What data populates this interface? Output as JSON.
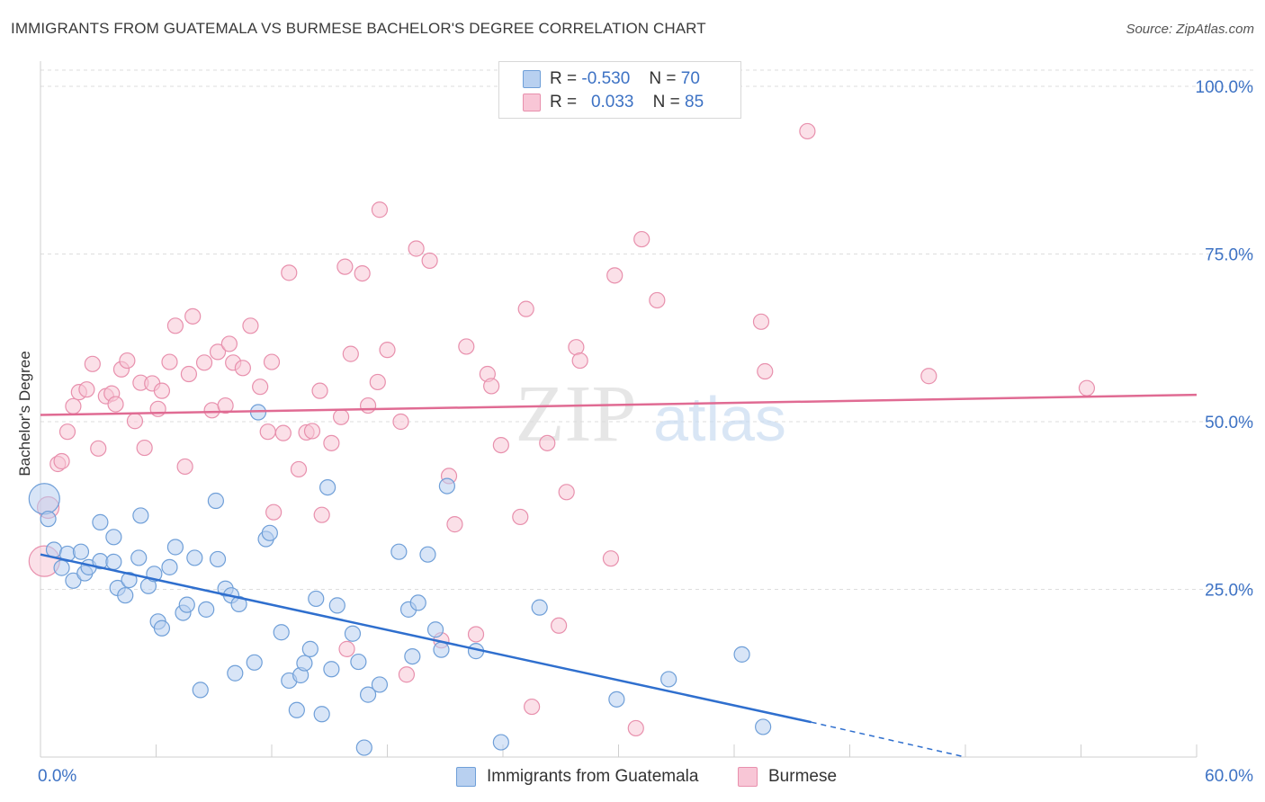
{
  "header": {
    "title": "IMMIGRANTS FROM GUATEMALA VS BURMESE BACHELOR'S DEGREE CORRELATION CHART",
    "source": "Source: ZipAtlas.com"
  },
  "colors": {
    "blue_fill": "#b8d0f0",
    "blue_stroke": "#6f9fd8",
    "blue_line": "#2f6fce",
    "pink_fill": "#f8c6d6",
    "pink_stroke": "#e890ad",
    "pink_line": "#e06b93",
    "value_text": "#3d72c4"
  },
  "stats": [
    {
      "r_label": "R =",
      "r_value": "-0.530",
      "n_label": "N =",
      "n_value": "70"
    },
    {
      "r_label": "R =",
      "r_value": "0.033",
      "n_label": "N =",
      "n_value": "85"
    }
  ],
  "legend": {
    "series1": "Immigrants from Guatemala",
    "series2": "Burmese"
  },
  "watermark": {
    "zip": "ZIP",
    "atlas": "atlas"
  },
  "chart_data": {
    "type": "scatter",
    "title": "IMMIGRANTS FROM GUATEMALA VS BURMESE BACHELOR'S DEGREE CORRELATION CHART",
    "xlabel": "",
    "ylabel": "Bachelor's Degree",
    "xlim": [
      0,
      60
    ],
    "ylim": [
      0,
      100
    ],
    "x_tick_labels": [
      "0.0%",
      "60.0%"
    ],
    "y_tick_labels": [
      "25.0%",
      "50.0%",
      "75.0%",
      "100.0%"
    ],
    "y_ticks": [
      25,
      50,
      75,
      100
    ],
    "series": [
      {
        "name": "Immigrants from Guatemala",
        "r": -0.53,
        "n": 70,
        "trend": {
          "x0": 0,
          "y0": 30.2,
          "x1": 40,
          "y1": 5.2,
          "dashed_to_x": 48,
          "dashed_to_y": 0
        },
        "points": [
          [
            0.2,
            38.5
          ],
          [
            0.4,
            35.5
          ],
          [
            0.7,
            30.9
          ],
          [
            1.1,
            28.2
          ],
          [
            1.4,
            30.3
          ],
          [
            1.7,
            26.3
          ],
          [
            2.1,
            30.6
          ],
          [
            2.3,
            27.4
          ],
          [
            2.5,
            28.3
          ],
          [
            3.1,
            29.2
          ],
          [
            3.1,
            35.0
          ],
          [
            3.8,
            29.1
          ],
          [
            3.8,
            32.8
          ],
          [
            4.0,
            25.2
          ],
          [
            4.4,
            24.1
          ],
          [
            4.6,
            26.4
          ],
          [
            5.1,
            29.7
          ],
          [
            5.2,
            36.0
          ],
          [
            5.6,
            25.5
          ],
          [
            5.9,
            27.3
          ],
          [
            6.1,
            20.2
          ],
          [
            6.3,
            19.2
          ],
          [
            6.7,
            28.3
          ],
          [
            7.0,
            31.3
          ],
          [
            7.4,
            21.5
          ],
          [
            7.6,
            22.7
          ],
          [
            8.0,
            29.7
          ],
          [
            8.3,
            10.0
          ],
          [
            8.6,
            22.0
          ],
          [
            9.1,
            38.2
          ],
          [
            9.2,
            29.5
          ],
          [
            9.6,
            25.1
          ],
          [
            9.9,
            24.1
          ],
          [
            10.1,
            12.5
          ],
          [
            10.3,
            22.8
          ],
          [
            11.1,
            14.1
          ],
          [
            11.3,
            51.4
          ],
          [
            11.7,
            32.5
          ],
          [
            11.9,
            33.4
          ],
          [
            12.5,
            18.6
          ],
          [
            12.9,
            11.4
          ],
          [
            13.3,
            7.0
          ],
          [
            13.5,
            12.2
          ],
          [
            13.7,
            14.0
          ],
          [
            14.0,
            16.1
          ],
          [
            14.3,
            23.6
          ],
          [
            14.6,
            6.4
          ],
          [
            14.9,
            40.2
          ],
          [
            15.1,
            13.1
          ],
          [
            15.4,
            22.6
          ],
          [
            16.2,
            18.4
          ],
          [
            16.5,
            14.2
          ],
          [
            16.8,
            1.4
          ],
          [
            17.0,
            9.3
          ],
          [
            17.6,
            10.8
          ],
          [
            18.6,
            30.6
          ],
          [
            19.1,
            22.0
          ],
          [
            19.3,
            15.0
          ],
          [
            19.6,
            23.0
          ],
          [
            20.1,
            30.2
          ],
          [
            20.5,
            19.0
          ],
          [
            20.8,
            16.0
          ],
          [
            21.1,
            40.4
          ],
          [
            22.6,
            15.8
          ],
          [
            23.9,
            2.2
          ],
          [
            25.9,
            22.3
          ],
          [
            29.9,
            8.6
          ],
          [
            32.6,
            11.6
          ],
          [
            36.4,
            15.3
          ],
          [
            37.5,
            4.5
          ]
        ]
      },
      {
        "name": "Burmese",
        "r": 0.033,
        "n": 85,
        "trend": {
          "x0": 0,
          "y0": 51.0,
          "x1": 60,
          "y1": 54.0
        },
        "points": [
          [
            0.2,
            29.2
          ],
          [
            0.4,
            37.2
          ],
          [
            0.9,
            43.7
          ],
          [
            1.1,
            44.1
          ],
          [
            1.4,
            48.5
          ],
          [
            1.7,
            52.3
          ],
          [
            2.0,
            54.4
          ],
          [
            2.4,
            54.8
          ],
          [
            2.7,
            58.6
          ],
          [
            3.0,
            46.0
          ],
          [
            3.4,
            53.8
          ],
          [
            3.7,
            54.2
          ],
          [
            3.9,
            52.6
          ],
          [
            4.2,
            57.8
          ],
          [
            4.5,
            59.1
          ],
          [
            4.9,
            50.1
          ],
          [
            5.2,
            55.8
          ],
          [
            5.4,
            46.1
          ],
          [
            5.8,
            55.7
          ],
          [
            6.1,
            51.9
          ],
          [
            6.3,
            54.6
          ],
          [
            6.7,
            58.9
          ],
          [
            7.0,
            64.3
          ],
          [
            7.5,
            43.3
          ],
          [
            7.7,
            57.1
          ],
          [
            7.9,
            65.7
          ],
          [
            8.5,
            58.8
          ],
          [
            8.9,
            51.7
          ],
          [
            9.2,
            60.4
          ],
          [
            9.6,
            52.4
          ],
          [
            9.8,
            61.6
          ],
          [
            10.0,
            58.8
          ],
          [
            10.5,
            58.0
          ],
          [
            10.9,
            64.3
          ],
          [
            11.4,
            55.2
          ],
          [
            11.8,
            48.5
          ],
          [
            12.0,
            58.9
          ],
          [
            12.1,
            36.5
          ],
          [
            12.6,
            48.3
          ],
          [
            12.9,
            72.2
          ],
          [
            13.4,
            42.9
          ],
          [
            13.8,
            48.4
          ],
          [
            14.1,
            48.6
          ],
          [
            14.5,
            54.6
          ],
          [
            14.6,
            36.1
          ],
          [
            15.1,
            46.8
          ],
          [
            15.6,
            50.7
          ],
          [
            15.8,
            73.1
          ],
          [
            15.9,
            16.1
          ],
          [
            16.1,
            60.1
          ],
          [
            16.7,
            72.1
          ],
          [
            17.0,
            52.4
          ],
          [
            17.5,
            55.9
          ],
          [
            17.6,
            81.6
          ],
          [
            18.0,
            60.7
          ],
          [
            18.7,
            50.0
          ],
          [
            19.0,
            12.3
          ],
          [
            19.5,
            75.8
          ],
          [
            20.2,
            74.0
          ],
          [
            20.8,
            17.4
          ],
          [
            21.2,
            41.9
          ],
          [
            21.5,
            34.7
          ],
          [
            22.1,
            61.2
          ],
          [
            22.6,
            18.3
          ],
          [
            23.2,
            57.1
          ],
          [
            23.4,
            55.3
          ],
          [
            23.9,
            46.5
          ],
          [
            24.9,
            35.8
          ],
          [
            25.2,
            66.8
          ],
          [
            25.5,
            7.5
          ],
          [
            26.3,
            46.8
          ],
          [
            26.9,
            19.6
          ],
          [
            27.3,
            39.5
          ],
          [
            27.8,
            61.1
          ],
          [
            28.0,
            59.1
          ],
          [
            29.6,
            29.6
          ],
          [
            29.8,
            71.8
          ],
          [
            30.9,
            4.3
          ],
          [
            31.2,
            77.2
          ],
          [
            32.0,
            68.1
          ],
          [
            37.4,
            64.9
          ],
          [
            37.6,
            57.5
          ],
          [
            39.8,
            93.3
          ],
          [
            46.1,
            56.8
          ],
          [
            54.3,
            55.0
          ]
        ]
      }
    ]
  }
}
